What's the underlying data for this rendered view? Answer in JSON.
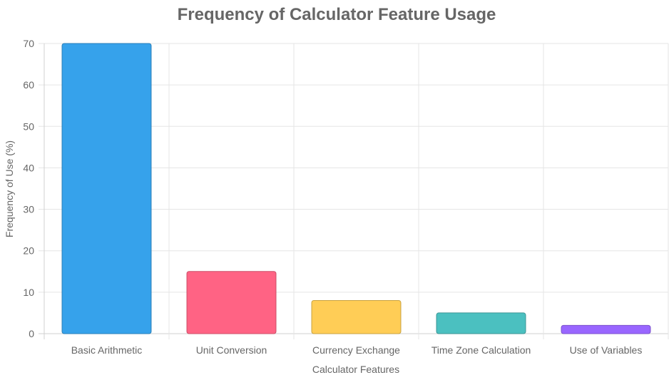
{
  "chart_data": {
    "type": "bar",
    "title": "Frequency of Calculator Feature Usage",
    "xlabel": "Calculator Features",
    "ylabel": "Frequency of Use (%)",
    "categories": [
      "Basic Arithmetic",
      "Unit Conversion",
      "Currency Exchange",
      "Time Zone Calculation",
      "Use of Variables"
    ],
    "values": [
      70,
      15,
      8,
      5,
      2
    ],
    "ylim": [
      0,
      70
    ],
    "yticks": [
      0,
      10,
      20,
      30,
      40,
      50,
      60,
      70
    ],
    "grid": true,
    "legend": "none",
    "colors": [
      "#36a2eb",
      "#ff6384",
      "#ffcd56",
      "#4bc0c0",
      "#9966ff"
    ],
    "border_colors": [
      "#2a7fb8",
      "#cc4f68",
      "#c9a23f",
      "#3b9595",
      "#7a52cc"
    ]
  }
}
